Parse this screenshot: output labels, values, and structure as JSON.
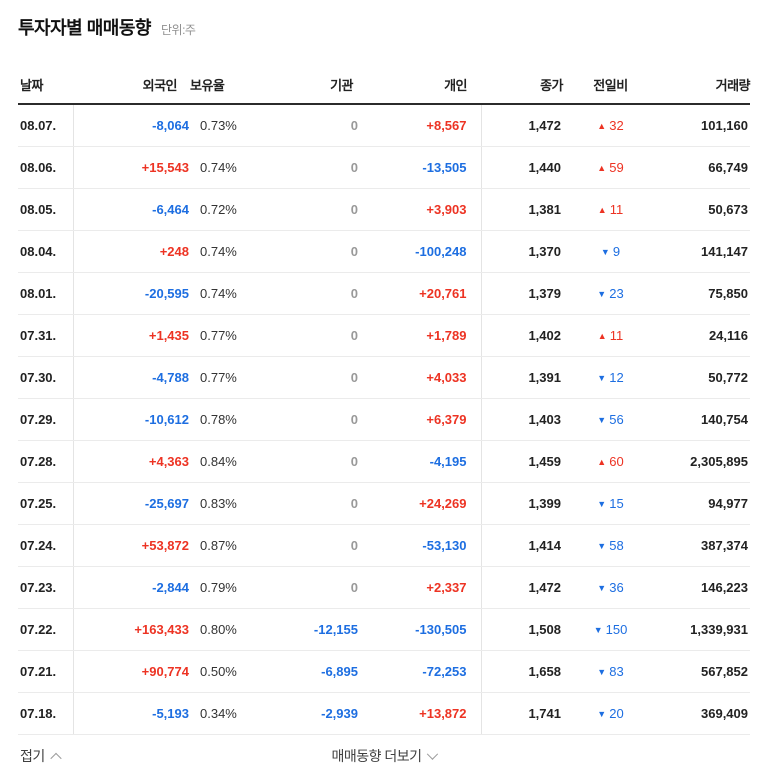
{
  "page": {
    "title": "투자자별 매매동향",
    "unit_label": "단위:주"
  },
  "table": {
    "columns": [
      "날짜",
      "외국인",
      "보유율",
      "기관",
      "개인",
      "종가",
      "전일비",
      "거래량"
    ],
    "rows": [
      {
        "date": "08.07.",
        "foreign": {
          "text": "-8,064",
          "dir": "down"
        },
        "ratio": "0.73%",
        "institution": {
          "text": "0",
          "dir": "flat"
        },
        "individual": {
          "text": "+8,567",
          "dir": "up"
        },
        "close": "1,472",
        "change": {
          "value": "32",
          "dir": "up"
        },
        "volume": "101,160"
      },
      {
        "date": "08.06.",
        "foreign": {
          "text": "+15,543",
          "dir": "up"
        },
        "ratio": "0.74%",
        "institution": {
          "text": "0",
          "dir": "flat"
        },
        "individual": {
          "text": "-13,505",
          "dir": "down"
        },
        "close": "1,440",
        "change": {
          "value": "59",
          "dir": "up"
        },
        "volume": "66,749"
      },
      {
        "date": "08.05.",
        "foreign": {
          "text": "-6,464",
          "dir": "down"
        },
        "ratio": "0.72%",
        "institution": {
          "text": "0",
          "dir": "flat"
        },
        "individual": {
          "text": "+3,903",
          "dir": "up"
        },
        "close": "1,381",
        "change": {
          "value": "11",
          "dir": "up"
        },
        "volume": "50,673"
      },
      {
        "date": "08.04.",
        "foreign": {
          "text": "+248",
          "dir": "up"
        },
        "ratio": "0.74%",
        "institution": {
          "text": "0",
          "dir": "flat"
        },
        "individual": {
          "text": "-100,248",
          "dir": "down"
        },
        "close": "1,370",
        "change": {
          "value": "9",
          "dir": "down"
        },
        "volume": "141,147"
      },
      {
        "date": "08.01.",
        "foreign": {
          "text": "-20,595",
          "dir": "down"
        },
        "ratio": "0.74%",
        "institution": {
          "text": "0",
          "dir": "flat"
        },
        "individual": {
          "text": "+20,761",
          "dir": "up"
        },
        "close": "1,379",
        "change": {
          "value": "23",
          "dir": "down"
        },
        "volume": "75,850"
      },
      {
        "date": "07.31.",
        "foreign": {
          "text": "+1,435",
          "dir": "up"
        },
        "ratio": "0.77%",
        "institution": {
          "text": "0",
          "dir": "flat"
        },
        "individual": {
          "text": "+1,789",
          "dir": "up"
        },
        "close": "1,402",
        "change": {
          "value": "11",
          "dir": "up"
        },
        "volume": "24,116"
      },
      {
        "date": "07.30.",
        "foreign": {
          "text": "-4,788",
          "dir": "down"
        },
        "ratio": "0.77%",
        "institution": {
          "text": "0",
          "dir": "flat"
        },
        "individual": {
          "text": "+4,033",
          "dir": "up"
        },
        "close": "1,391",
        "change": {
          "value": "12",
          "dir": "down"
        },
        "volume": "50,772"
      },
      {
        "date": "07.29.",
        "foreign": {
          "text": "-10,612",
          "dir": "down"
        },
        "ratio": "0.78%",
        "institution": {
          "text": "0",
          "dir": "flat"
        },
        "individual": {
          "text": "+6,379",
          "dir": "up"
        },
        "close": "1,403",
        "change": {
          "value": "56",
          "dir": "down"
        },
        "volume": "140,754"
      },
      {
        "date": "07.28.",
        "foreign": {
          "text": "+4,363",
          "dir": "up"
        },
        "ratio": "0.84%",
        "institution": {
          "text": "0",
          "dir": "flat"
        },
        "individual": {
          "text": "-4,195",
          "dir": "down"
        },
        "close": "1,459",
        "change": {
          "value": "60",
          "dir": "up"
        },
        "volume": "2,305,895"
      },
      {
        "date": "07.25.",
        "foreign": {
          "text": "-25,697",
          "dir": "down"
        },
        "ratio": "0.83%",
        "institution": {
          "text": "0",
          "dir": "flat"
        },
        "individual": {
          "text": "+24,269",
          "dir": "up"
        },
        "close": "1,399",
        "change": {
          "value": "15",
          "dir": "down"
        },
        "volume": "94,977"
      },
      {
        "date": "07.24.",
        "foreign": {
          "text": "+53,872",
          "dir": "up"
        },
        "ratio": "0.87%",
        "institution": {
          "text": "0",
          "dir": "flat"
        },
        "individual": {
          "text": "-53,130",
          "dir": "down"
        },
        "close": "1,414",
        "change": {
          "value": "58",
          "dir": "down"
        },
        "volume": "387,374"
      },
      {
        "date": "07.23.",
        "foreign": {
          "text": "-2,844",
          "dir": "down"
        },
        "ratio": "0.79%",
        "institution": {
          "text": "0",
          "dir": "flat"
        },
        "individual": {
          "text": "+2,337",
          "dir": "up"
        },
        "close": "1,472",
        "change": {
          "value": "36",
          "dir": "down"
        },
        "volume": "146,223"
      },
      {
        "date": "07.22.",
        "foreign": {
          "text": "+163,433",
          "dir": "up"
        },
        "ratio": "0.80%",
        "institution": {
          "text": "-12,155",
          "dir": "down"
        },
        "individual": {
          "text": "-130,505",
          "dir": "down"
        },
        "close": "1,508",
        "change": {
          "value": "150",
          "dir": "down"
        },
        "volume": "1,339,931"
      },
      {
        "date": "07.21.",
        "foreign": {
          "text": "+90,774",
          "dir": "up"
        },
        "ratio": "0.50%",
        "institution": {
          "text": "-6,895",
          "dir": "down"
        },
        "individual": {
          "text": "-72,253",
          "dir": "down"
        },
        "close": "1,658",
        "change": {
          "value": "83",
          "dir": "down"
        },
        "volume": "567,852"
      },
      {
        "date": "07.18.",
        "foreign": {
          "text": "-5,193",
          "dir": "down"
        },
        "ratio": "0.34%",
        "institution": {
          "text": "-2,939",
          "dir": "down"
        },
        "individual": {
          "text": "+13,872",
          "dir": "up"
        },
        "close": "1,741",
        "change": {
          "value": "20",
          "dir": "down"
        },
        "volume": "369,409"
      }
    ]
  },
  "footer": {
    "collapse_label": "접기",
    "more_label": "매매동향 더보기"
  },
  "icons": {
    "up_triangle": "▲",
    "down_triangle": "▼"
  },
  "colors": {
    "up_red": "#ed3323",
    "down_blue": "#1d6ee1",
    "flat_gray": "#999999"
  }
}
